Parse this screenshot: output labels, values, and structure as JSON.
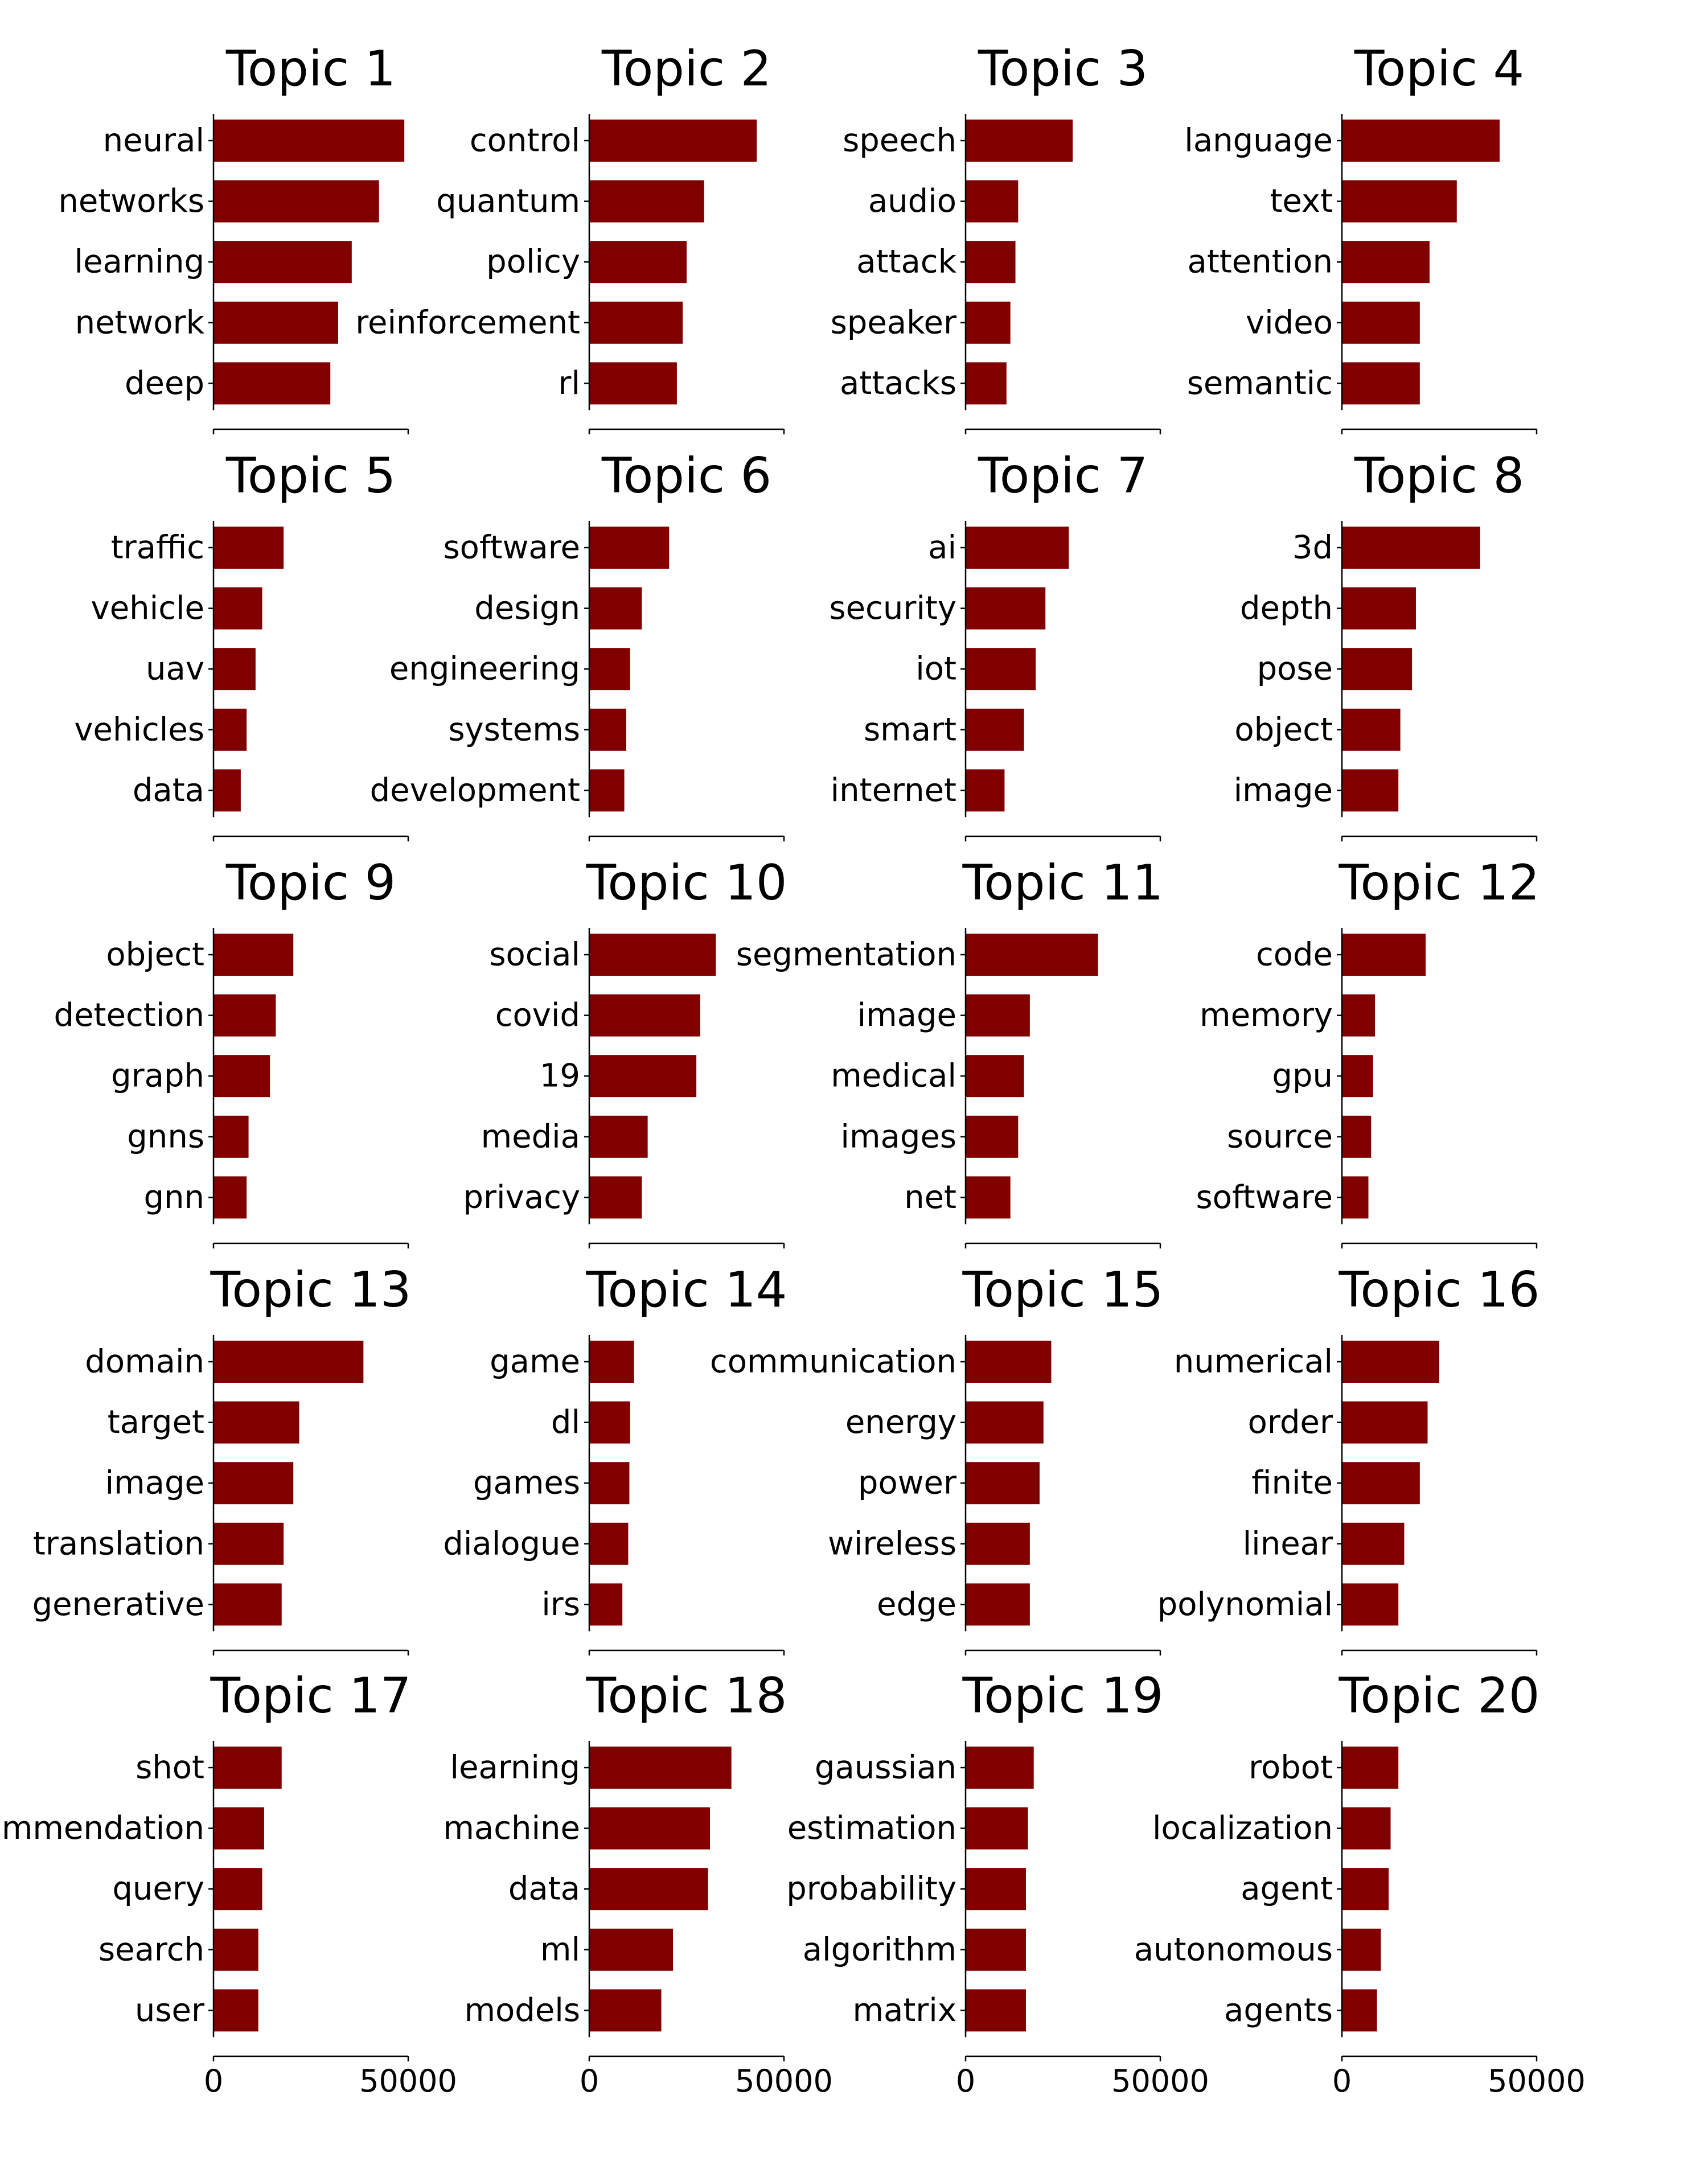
{
  "style": {
    "bar_color": "#800000",
    "axis_color": "#000000"
  },
  "chart_data": [
    {
      "type": "bar",
      "orientation": "horizontal",
      "title": "Topic 1",
      "categories": [
        "neural",
        "networks",
        "learning",
        "network",
        "deep"
      ],
      "values": [
        49000,
        42500,
        35500,
        32000,
        30000
      ],
      "xlim": [
        0,
        50000
      ],
      "xticks": [
        0,
        50000
      ],
      "xtick_labels": [
        "0",
        "50000"
      ]
    },
    {
      "type": "bar",
      "orientation": "horizontal",
      "title": "Topic 2",
      "categories": [
        "control",
        "quantum",
        "policy",
        "reinforcement",
        "rl"
      ],
      "values": [
        43000,
        29500,
        25000,
        24000,
        22500
      ],
      "xlim": [
        0,
        50000
      ],
      "xticks": [
        0,
        50000
      ],
      "xtick_labels": [
        "0",
        "50000"
      ]
    },
    {
      "type": "bar",
      "orientation": "horizontal",
      "title": "Topic 3",
      "categories": [
        "speech",
        "audio",
        "attack",
        "speaker",
        "attacks"
      ],
      "values": [
        27500,
        13500,
        12800,
        11500,
        10500
      ],
      "xlim": [
        0,
        50000
      ],
      "xticks": [
        0,
        50000
      ],
      "xtick_labels": [
        "0",
        "50000"
      ]
    },
    {
      "type": "bar",
      "orientation": "horizontal",
      "title": "Topic 4",
      "categories": [
        "language",
        "text",
        "attention",
        "video",
        "semantic"
      ],
      "values": [
        40500,
        29500,
        22500,
        20000,
        20000
      ],
      "xlim": [
        0,
        50000
      ],
      "xticks": [
        0,
        50000
      ],
      "xtick_labels": [
        "0",
        "50000"
      ]
    },
    {
      "type": "bar",
      "orientation": "horizontal",
      "title": "Topic 5",
      "categories": [
        "traffic",
        "vehicle",
        "uav",
        "vehicles",
        "data"
      ],
      "values": [
        18000,
        12500,
        10800,
        8500,
        7000
      ],
      "xlim": [
        0,
        50000
      ],
      "xticks": [
        0,
        50000
      ],
      "xtick_labels": [
        "0",
        "50000"
      ]
    },
    {
      "type": "bar",
      "orientation": "horizontal",
      "title": "Topic 6",
      "categories": [
        "software",
        "design",
        "engineering",
        "systems",
        "development"
      ],
      "values": [
        20500,
        13500,
        10500,
        9500,
        9000
      ],
      "xlim": [
        0,
        50000
      ],
      "xticks": [
        0,
        50000
      ],
      "xtick_labels": [
        "0",
        "50000"
      ]
    },
    {
      "type": "bar",
      "orientation": "horizontal",
      "title": "Topic 7",
      "categories": [
        "ai",
        "security",
        "iot",
        "smart",
        "internet"
      ],
      "values": [
        26500,
        20500,
        18000,
        15000,
        10000
      ],
      "xlim": [
        0,
        50000
      ],
      "xticks": [
        0,
        50000
      ],
      "xtick_labels": [
        "0",
        "50000"
      ]
    },
    {
      "type": "bar",
      "orientation": "horizontal",
      "title": "Topic 8",
      "categories": [
        "3d",
        "depth",
        "pose",
        "object",
        "image"
      ],
      "values": [
        35500,
        19000,
        18000,
        15000,
        14500
      ],
      "xlim": [
        0,
        50000
      ],
      "xticks": [
        0,
        50000
      ],
      "xtick_labels": [
        "0",
        "50000"
      ]
    },
    {
      "type": "bar",
      "orientation": "horizontal",
      "title": "Topic 9",
      "categories": [
        "object",
        "detection",
        "graph",
        "gnns",
        "gnn"
      ],
      "values": [
        20500,
        16000,
        14500,
        9000,
        8500
      ],
      "xlim": [
        0,
        50000
      ],
      "xticks": [
        0,
        50000
      ],
      "xtick_labels": [
        "0",
        "50000"
      ]
    },
    {
      "type": "bar",
      "orientation": "horizontal",
      "title": "Topic 10",
      "categories": [
        "social",
        "covid",
        "19",
        "media",
        "privacy"
      ],
      "values": [
        32500,
        28500,
        27500,
        15000,
        13500
      ],
      "xlim": [
        0,
        50000
      ],
      "xticks": [
        0,
        50000
      ],
      "xtick_labels": [
        "0",
        "50000"
      ]
    },
    {
      "type": "bar",
      "orientation": "horizontal",
      "title": "Topic 11",
      "categories": [
        "segmentation",
        "image",
        "medical",
        "images",
        "net"
      ],
      "values": [
        34000,
        16500,
        15000,
        13500,
        11500
      ],
      "xlim": [
        0,
        50000
      ],
      "xticks": [
        0,
        50000
      ],
      "xtick_labels": [
        "0",
        "50000"
      ]
    },
    {
      "type": "bar",
      "orientation": "horizontal",
      "title": "Topic 12",
      "categories": [
        "code",
        "memory",
        "gpu",
        "source",
        "software"
      ],
      "values": [
        21500,
        8500,
        8000,
        7500,
        6800
      ],
      "xlim": [
        0,
        50000
      ],
      "xticks": [
        0,
        50000
      ],
      "xtick_labels": [
        "0",
        "50000"
      ]
    },
    {
      "type": "bar",
      "orientation": "horizontal",
      "title": "Topic 13",
      "categories": [
        "domain",
        "target",
        "image",
        "translation",
        "generative"
      ],
      "values": [
        38500,
        22000,
        20500,
        18000,
        17500
      ],
      "xlim": [
        0,
        50000
      ],
      "xticks": [
        0,
        50000
      ],
      "xtick_labels": [
        "0",
        "50000"
      ]
    },
    {
      "type": "bar",
      "orientation": "horizontal",
      "title": "Topic 14",
      "categories": [
        "game",
        "dl",
        "games",
        "dialogue",
        "irs"
      ],
      "values": [
        11500,
        10500,
        10300,
        10000,
        8500
      ],
      "xlim": [
        0,
        50000
      ],
      "xticks": [
        0,
        50000
      ],
      "xtick_labels": [
        "0",
        "50000"
      ]
    },
    {
      "type": "bar",
      "orientation": "horizontal",
      "title": "Topic 15",
      "categories": [
        "communication",
        "energy",
        "power",
        "wireless",
        "edge"
      ],
      "values": [
        22000,
        20000,
        19000,
        16500,
        16500
      ],
      "xlim": [
        0,
        50000
      ],
      "xticks": [
        0,
        50000
      ],
      "xtick_labels": [
        "0",
        "50000"
      ]
    },
    {
      "type": "bar",
      "orientation": "horizontal",
      "title": "Topic 16",
      "categories": [
        "numerical",
        "order",
        "finite",
        "linear",
        "polynomial"
      ],
      "values": [
        25000,
        22000,
        20000,
        16000,
        14500
      ],
      "xlim": [
        0,
        50000
      ],
      "xticks": [
        0,
        50000
      ],
      "xtick_labels": [
        "0",
        "50000"
      ]
    },
    {
      "type": "bar",
      "orientation": "horizontal",
      "title": "Topic 17",
      "categories": [
        "shot",
        "recommendation",
        "query",
        "search",
        "user"
      ],
      "values": [
        17500,
        13000,
        12500,
        11500,
        11500
      ],
      "xlim": [
        0,
        50000
      ],
      "xticks": [
        0,
        50000
      ],
      "xtick_labels": [
        "0",
        "50000"
      ]
    },
    {
      "type": "bar",
      "orientation": "horizontal",
      "title": "Topic 18",
      "categories": [
        "learning",
        "machine",
        "data",
        "ml",
        "models"
      ],
      "values": [
        36500,
        31000,
        30500,
        21500,
        18500
      ],
      "xlim": [
        0,
        50000
      ],
      "xticks": [
        0,
        50000
      ],
      "xtick_labels": [
        "0",
        "50000"
      ]
    },
    {
      "type": "bar",
      "orientation": "horizontal",
      "title": "Topic 19",
      "categories": [
        "gaussian",
        "estimation",
        "probability",
        "algorithm",
        "matrix"
      ],
      "values": [
        17500,
        16000,
        15500,
        15500,
        15500
      ],
      "xlim": [
        0,
        50000
      ],
      "xticks": [
        0,
        50000
      ],
      "xtick_labels": [
        "0",
        "50000"
      ]
    },
    {
      "type": "bar",
      "orientation": "horizontal",
      "title": "Topic 20",
      "categories": [
        "robot",
        "localization",
        "agent",
        "autonomous",
        "agents"
      ],
      "values": [
        14500,
        12500,
        12000,
        10000,
        9000
      ],
      "xlim": [
        0,
        50000
      ],
      "xticks": [
        0,
        50000
      ],
      "xtick_labels": [
        "0",
        "50000"
      ]
    }
  ]
}
